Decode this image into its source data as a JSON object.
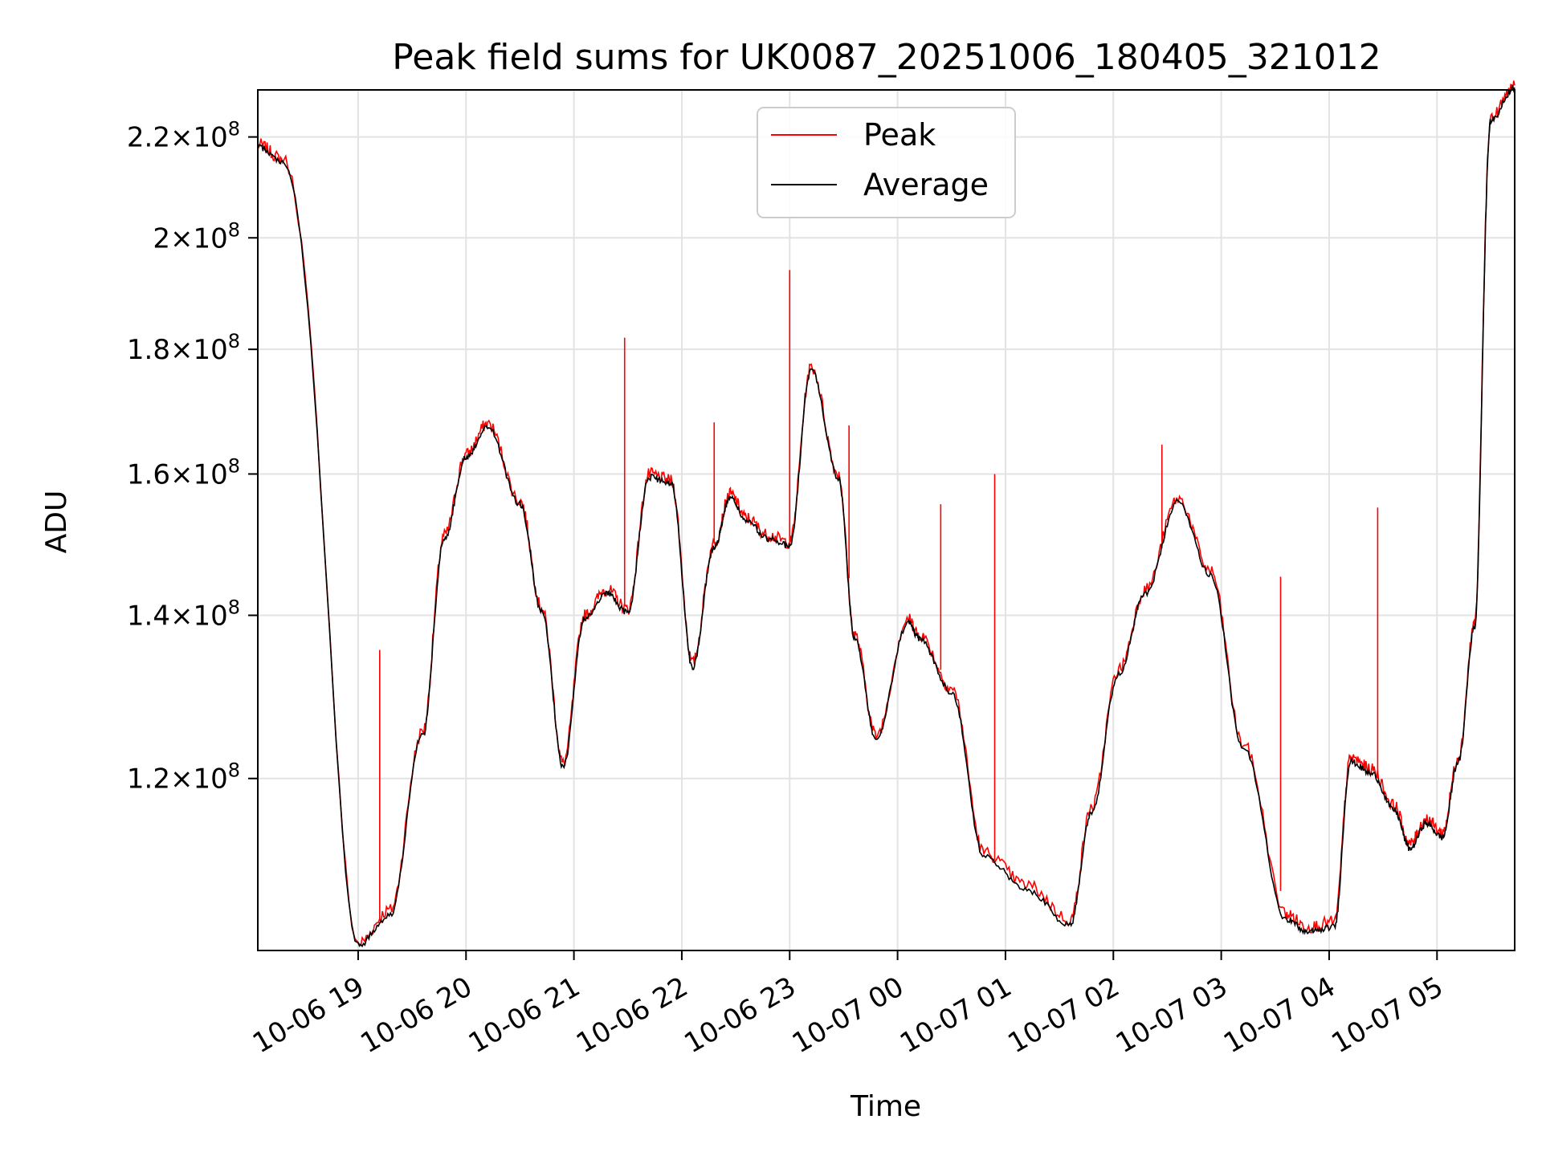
{
  "chart_data": {
    "type": "line",
    "title": "Peak field sums for UK0087_20251006_180405_321012",
    "xlabel": "Time",
    "ylabel": "ADU",
    "y_scale": "log",
    "ylim": [
      102000000,
      230000000
    ],
    "xlim_hours_from_2025-10-06_18:00": [
      0.07,
      11.72
    ],
    "grid": true,
    "legend_position": "upper center",
    "x_ticks": [
      {
        "hour": 1,
        "label": "10-06 19"
      },
      {
        "hour": 2,
        "label": "10-06 20"
      },
      {
        "hour": 3,
        "label": "10-06 21"
      },
      {
        "hour": 4,
        "label": "10-06 22"
      },
      {
        "hour": 5,
        "label": "10-06 23"
      },
      {
        "hour": 6,
        "label": "10-07 00"
      },
      {
        "hour": 7,
        "label": "10-07 01"
      },
      {
        "hour": 8,
        "label": "10-07 02"
      },
      {
        "hour": 9,
        "label": "10-07 03"
      },
      {
        "hour": 10,
        "label": "10-07 04"
      },
      {
        "hour": 11,
        "label": "10-07 05"
      }
    ],
    "y_ticks": [
      {
        "value": 120000000,
        "mantissa": "1.2",
        "exp": "8"
      },
      {
        "value": 140000000,
        "mantissa": "1.4",
        "exp": "8"
      },
      {
        "value": 160000000,
        "mantissa": "1.6",
        "exp": "8"
      },
      {
        "value": 180000000,
        "mantissa": "1.8",
        "exp": "8"
      },
      {
        "value": 200000000,
        "mantissa": "2",
        "exp": "8"
      },
      {
        "value": 220000000,
        "mantissa": "2.2",
        "exp": "8"
      }
    ],
    "x_units": "hours after 2025-10-06 18:00",
    "series": [
      {
        "name": "Peak",
        "color": "#ff0000",
        "x": [
          0.07,
          0.3,
          1.0,
          1.3,
          1.6,
          1.8,
          2.0,
          2.2,
          2.5,
          2.7,
          2.9,
          3.1,
          3.3,
          3.5,
          3.7,
          3.9,
          4.1,
          4.3,
          4.45,
          4.6,
          4.8,
          5.0,
          5.2,
          5.45,
          5.6,
          5.8,
          6.1,
          6.2,
          6.5,
          6.8,
          7.2,
          7.6,
          7.8,
          8.05,
          8.3,
          8.6,
          8.9,
          9.2,
          9.6,
          9.8,
          10.05,
          10.2,
          10.4,
          10.6,
          10.75,
          10.9,
          11.05,
          11.2,
          11.35,
          11.5,
          11.72
        ],
        "y": [
          218500000,
          215500000,
          102700000,
          106000000,
          125500000,
          151000000,
          163000000,
          167800000,
          156000000,
          141000000,
          121700000,
          140000000,
          143500000,
          140800000,
          160000000,
          159000000,
          133800000,
          149800000,
          157000000,
          153500000,
          151000000,
          150000000,
          177000000,
          160000000,
          137500000,
          125000000,
          139500000,
          137500000,
          130700000,
          111900000,
          108500000,
          105000000,
          116800000,
          133000000,
          143500000,
          156300000,
          146000000,
          124000000,
          105600000,
          104300000,
          104800000,
          122400000,
          121000000,
          117000000,
          112800000,
          115500000,
          114000000,
          122500000,
          139000000,
          224000000,
          231000000
        ],
        "spikes": [
          {
            "x": 1.2,
            "y": 135500000
          },
          {
            "x": 3.47,
            "y": 182000000
          },
          {
            "x": 4.3,
            "y": 168000000
          },
          {
            "x": 5.0,
            "y": 194000000
          },
          {
            "x": 5.55,
            "y": 167500000
          },
          {
            "x": 6.4,
            "y": 155500000
          },
          {
            "x": 6.9,
            "y": 160000000
          },
          {
            "x": 8.45,
            "y": 164500000
          },
          {
            "x": 9.55,
            "y": 145200000
          },
          {
            "x": 10.45,
            "y": 155000000
          }
        ]
      },
      {
        "name": "Average",
        "color": "#000000",
        "x": [
          0.07,
          0.3,
          1.0,
          1.3,
          1.6,
          1.8,
          2.0,
          2.2,
          2.5,
          2.7,
          2.9,
          3.1,
          3.3,
          3.5,
          3.7,
          3.9,
          4.1,
          4.3,
          4.45,
          4.6,
          4.8,
          5.0,
          5.2,
          5.45,
          5.6,
          5.8,
          6.1,
          6.2,
          6.5,
          6.8,
          7.2,
          7.6,
          7.8,
          8.05,
          8.3,
          8.6,
          8.9,
          9.2,
          9.6,
          9.8,
          10.05,
          10.2,
          10.4,
          10.6,
          10.75,
          10.9,
          11.05,
          11.2,
          11.35,
          11.5,
          11.72
        ],
        "y": [
          218000000,
          215000000,
          102500000,
          105500000,
          125000000,
          150500000,
          162500000,
          167300000,
          155500000,
          140500000,
          121200000,
          139500000,
          143000000,
          140300000,
          159500000,
          158500000,
          133300000,
          149300000,
          156500000,
          153000000,
          150500000,
          149500000,
          176500000,
          159500000,
          137000000,
          124500000,
          139000000,
          137000000,
          130200000,
          111400000,
          108000000,
          104500000,
          116300000,
          132500000,
          143000000,
          155800000,
          145500000,
          123500000,
          105100000,
          103800000,
          104300000,
          121900000,
          120500000,
          116500000,
          112300000,
          115000000,
          113500000,
          122000000,
          138500000,
          223500000,
          230500000
        ]
      }
    ]
  }
}
